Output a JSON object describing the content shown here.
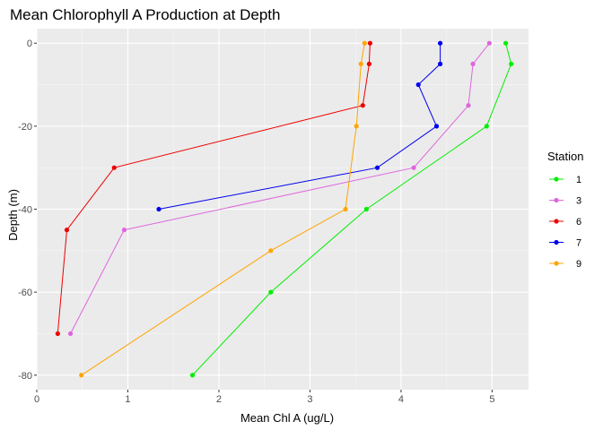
{
  "chart_data": {
    "type": "line",
    "title": "Mean Chlorophyll A Production at Depth",
    "xlabel": "Mean Chl A (ug/L)",
    "ylabel": "Depth (m)",
    "xlim": [
      0,
      5.4
    ],
    "ylim": [
      -83.5,
      3.5
    ],
    "x_ticks": [
      0,
      1,
      2,
      3,
      4,
      5
    ],
    "y_ticks": [
      0,
      -20,
      -40,
      -60,
      -80
    ],
    "grid": true,
    "legend_position": "right",
    "legend_title": "Station",
    "series": [
      {
        "name": "1",
        "color": "#00ee00",
        "points": [
          [
            5.15,
            0
          ],
          [
            5.21,
            -5
          ],
          [
            4.94,
            -20
          ],
          [
            3.62,
            -40
          ],
          [
            2.57,
            -60
          ],
          [
            1.71,
            -80
          ]
        ]
      },
      {
        "name": "3",
        "color": "#dd66dd",
        "points": [
          [
            4.97,
            0
          ],
          [
            4.79,
            -5
          ],
          [
            4.74,
            -15
          ],
          [
            4.14,
            -30
          ],
          [
            0.96,
            -45
          ],
          [
            0.37,
            -70
          ]
        ]
      },
      {
        "name": "6",
        "color": "#ee0000",
        "points": [
          [
            3.66,
            0
          ],
          [
            3.65,
            -5
          ],
          [
            3.58,
            -15
          ],
          [
            0.85,
            -30
          ],
          [
            0.33,
            -45
          ],
          [
            0.23,
            -70
          ]
        ]
      },
      {
        "name": "7",
        "color": "#0000ee",
        "points": [
          [
            4.43,
            0
          ],
          [
            4.43,
            -5
          ],
          [
            4.19,
            -10
          ],
          [
            4.39,
            -20
          ],
          [
            3.74,
            -30
          ],
          [
            1.34,
            -40
          ]
        ]
      },
      {
        "name": "9",
        "color": "#ffa500",
        "points": [
          [
            3.6,
            0
          ],
          [
            3.56,
            -5
          ],
          [
            3.51,
            -20
          ],
          [
            3.39,
            -40
          ],
          [
            2.57,
            -50
          ],
          [
            0.49,
            -80
          ]
        ]
      }
    ]
  }
}
